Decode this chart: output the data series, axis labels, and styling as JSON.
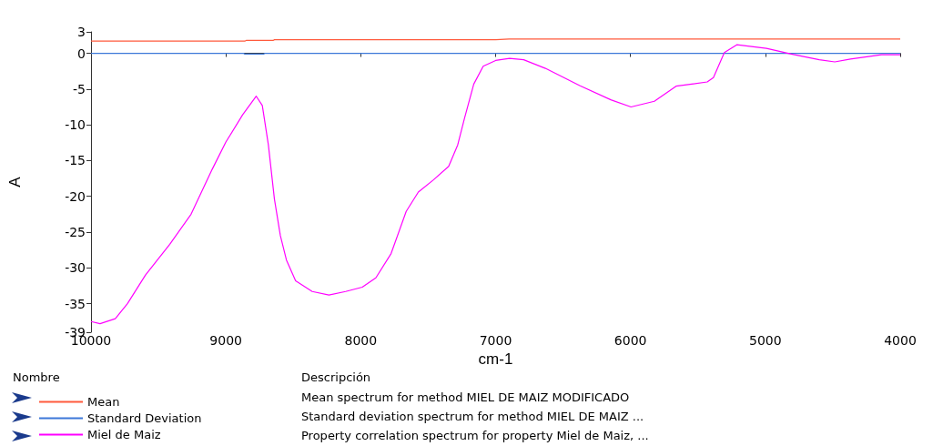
{
  "chart_data": {
    "type": "line",
    "xlabel": "cm-1",
    "ylabel": "A",
    "legend_title": "Nombre",
    "legend": "bottom",
    "xlim": [
      10000,
      4000
    ],
    "xticks": [
      10000,
      9000,
      8000,
      7000,
      6000,
      5000,
      4000
    ],
    "ylim": [
      -39,
      3
    ],
    "yticks": [
      3,
      0,
      -5,
      -10,
      -15,
      -20,
      -25,
      -30,
      -35,
      -39
    ],
    "annotations": [
      "Descripción",
      "Mean spectrum for method MIEL DE MAIZ MODIFICADO",
      "Standard deviation spectrum for method MIEL DE MAIZ ...",
      "Property correlation spectrum for property Miel de Maiz, ..."
    ],
    "series": [
      {
        "name": "Mean",
        "color": "#ff5a3c",
        "x": [
          10000,
          8860,
          8850,
          8650,
          8640,
          7000,
          6900,
          4000
        ],
        "values": [
          1.7,
          1.7,
          1.8,
          1.8,
          1.9,
          1.9,
          2.0,
          2.0
        ]
      },
      {
        "name": "Standard Deviation",
        "color": "#3c78d8",
        "x": [
          10000,
          8870,
          8860,
          8720,
          8710,
          4000
        ],
        "values": [
          0,
          0,
          -0.1,
          -0.1,
          0,
          0
        ]
      },
      {
        "name": "Miel de Maiz",
        "color": "#ff00ff",
        "x": [
          10000,
          9933,
          9820,
          9730,
          9596,
          9416,
          9258,
          9101,
          9000,
          8876,
          8775,
          8730,
          8685,
          8640,
          8596,
          8551,
          8483,
          8360,
          8236,
          8112,
          7989,
          7888,
          7775,
          7663,
          7573,
          7461,
          7348,
          7281,
          7231,
          7162,
          7092,
          7000,
          6896,
          6792,
          6631,
          6377,
          6146,
          5996,
          5823,
          5662,
          5546,
          5431,
          5385,
          5304,
          5212,
          4992,
          4808,
          4600,
          4485,
          4369,
          4139,
          4000
        ],
        "values": [
          -37.5,
          -37.8,
          -37.1,
          -35,
          -31,
          -26.7,
          -22.5,
          -16.2,
          -12.4,
          -8.6,
          -6,
          -7.3,
          -12.8,
          -20.4,
          -25.5,
          -28.9,
          -31.8,
          -33.3,
          -33.8,
          -33.3,
          -32.7,
          -31.4,
          -28,
          -22.1,
          -19.4,
          -17.7,
          -15.8,
          -12.8,
          -9.1,
          -4.3,
          -1.8,
          -1.0,
          -0.7,
          -0.9,
          -2.1,
          -4.5,
          -6.5,
          -7.5,
          -6.7,
          -4.6,
          -4.3,
          -4.0,
          -3.4,
          0.1,
          1.2,
          0.7,
          -0.1,
          -0.9,
          -1.2,
          -0.8,
          -0.2,
          -0.2
        ]
      }
    ]
  }
}
